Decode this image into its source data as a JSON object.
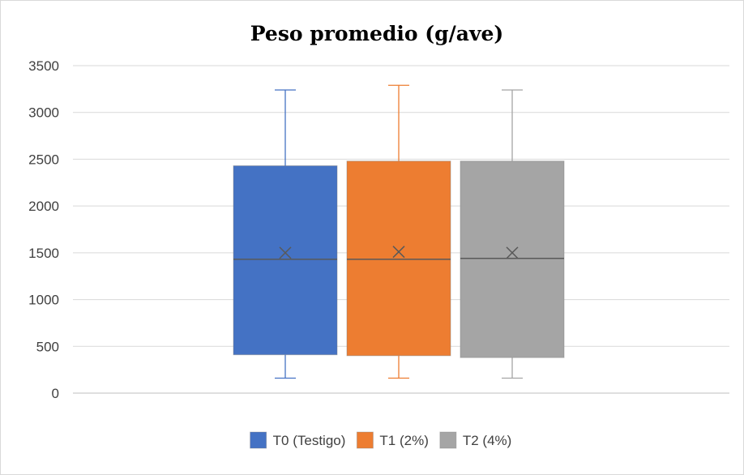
{
  "chart_data": {
    "type": "box",
    "title": "Peso promedio (g/ave)",
    "xlabel": "",
    "ylabel": "",
    "ylim": [
      0,
      3500
    ],
    "yticks": [
      0,
      500,
      1000,
      1500,
      2000,
      2500,
      3000,
      3500
    ],
    "grid": true,
    "legend_position": "bottom",
    "series": [
      {
        "name": "T0 (Testigo)",
        "color": "#4472C4",
        "min": 160,
        "q1": 410,
        "median": 1430,
        "mean": 1500,
        "q3": 2430,
        "max": 3240
      },
      {
        "name": "T1 (2%)",
        "color": "#ED7D31",
        "min": 160,
        "q1": 400,
        "median": 1430,
        "mean": 1510,
        "q3": 2480,
        "max": 3290
      },
      {
        "name": "T2 (4%)",
        "color": "#A5A5A5",
        "min": 160,
        "q1": 380,
        "median": 1440,
        "mean": 1500,
        "q3": 2480,
        "max": 3240
      }
    ]
  }
}
